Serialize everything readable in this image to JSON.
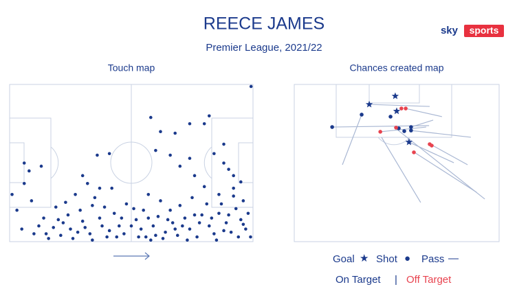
{
  "header": {
    "title": "REECE JAMES",
    "subtitle": "Premier League, 2021/22",
    "logo_sky": "sky",
    "logo_sports": "sports"
  },
  "touch_map": {
    "label": "Touch map",
    "color": "#1b3a8c",
    "touches": {
      "x": [
        6,
        8,
        6,
        13,
        1,
        3,
        9,
        5,
        10,
        14,
        19,
        22,
        25,
        21,
        27,
        29,
        30,
        33,
        35,
        37,
        38,
        40,
        32,
        43,
        45,
        47,
        48,
        42,
        36,
        30,
        41,
        34,
        26,
        16,
        12,
        24,
        39,
        44,
        18,
        28,
        46,
        31,
        23,
        37,
        20,
        15,
        34,
        41,
        58,
        62,
        66,
        68,
        60,
        70,
        74,
        76,
        74,
        80,
        82,
        84,
        88,
        90,
        92,
        95,
        96,
        98,
        99.2,
        88,
        92,
        86,
        80,
        75,
        70,
        66,
        62,
        57,
        55,
        52,
        54,
        56,
        59,
        61,
        64,
        67,
        69,
        72,
        74,
        77,
        79,
        82,
        84,
        86,
        89,
        91,
        93,
        95,
        97,
        99,
        58,
        63,
        68,
        73,
        78,
        81,
        85,
        87,
        90,
        94,
        96,
        53,
        60,
        65,
        71,
        76,
        83,
        88,
        92,
        50,
        51,
        57
      ],
      "y": [
        50,
        55,
        63,
        52,
        70,
        80,
        74,
        92,
        95,
        85,
        78,
        88,
        92,
        96,
        70,
        80,
        87,
        95,
        72,
        85,
        90,
        97,
        63,
        82,
        90,
        95,
        76,
        66,
        45,
        58,
        44,
        77,
        98,
        98,
        90,
        83,
        78,
        97,
        91,
        94,
        85,
        91,
        75,
        66,
        86,
        95,
        99,
        93,
        21,
        30,
        45,
        31,
        42,
        52,
        47,
        58,
        25,
        25,
        20,
        44,
        50,
        54,
        58,
        62,
        74,
        82,
        1.3,
        38,
        66,
        70,
        65,
        72,
        77,
        80,
        74,
        70,
        80,
        86,
        92,
        97,
        90,
        84,
        94,
        88,
        96,
        85,
        92,
        97,
        83,
        90,
        95,
        82,
        88,
        94,
        79,
        86,
        92,
        97,
        99,
        98,
        92,
        99,
        88,
        76,
        99,
        76,
        83,
        97,
        89,
        97,
        96,
        86,
        90,
        83,
        85,
        93,
        71,
        90,
        79,
        85
      ]
    }
  },
  "chances_map": {
    "label": "Chances created map",
    "pass_color": "#a9b7d3",
    "passes": {
      "x1": [
        18.5,
        32.9,
        36.6,
        42,
        54.4,
        57,
        57,
        56,
        42.6,
        48.7,
        66.4,
        57.7
      ],
      "y1": [
        27.1,
        19.2,
        12.7,
        30.1,
        15.3,
        27.1,
        29.3,
        36.7,
        33.6,
        27.1,
        38,
        42.4
      ],
      "x2": [
        65.8,
        23.5,
        66.1,
        64.4,
        72.1,
        67.8,
        86.2,
        77.9,
        61.7,
        93,
        84.6,
        89
      ],
      "y2": [
        26.2,
        51.1,
        14,
        27.1,
        20.5,
        22.7,
        33.6,
        49.8,
        75.1,
        72.9,
        51.1,
        68.6
      ]
    },
    "goals": {
      "x": [
        49.3,
        36.6,
        50,
        56
      ],
      "y": [
        7.4,
        12.7,
        17,
        36.7
      ],
      "color": "#1b3a8c"
    },
    "shots": {
      "x": [
        18.5,
        32.9,
        47,
        51,
        53.7,
        57,
        57,
        42,
        52.3,
        54.4,
        49.7,
        66.1,
        67.1,
        58.4
      ],
      "y": [
        27.1,
        19.2,
        20.5,
        27.9,
        29.7,
        27.1,
        29.3,
        30.1,
        15.3,
        15.3,
        27.5,
        38,
        38.9,
        43.2
      ],
      "colors": [
        "#1b3a8c",
        "#1b3a8c",
        "#1b3a8c",
        "#1b3a8c",
        "#1b3a8c",
        "#1b3a8c",
        "#1b3a8c",
        "#e8434f",
        "#e8434f",
        "#e8434f",
        "#e8434f",
        "#e8434f",
        "#e8434f",
        "#e8434f"
      ]
    }
  },
  "legend": {
    "goal": "Goal",
    "goal_icon": "★",
    "shot": "Shot",
    "shot_icon": "●",
    "pass": "Pass",
    "pass_icon": "—",
    "on_target": "On Target",
    "separator": "|",
    "off_target": "Off Target"
  }
}
